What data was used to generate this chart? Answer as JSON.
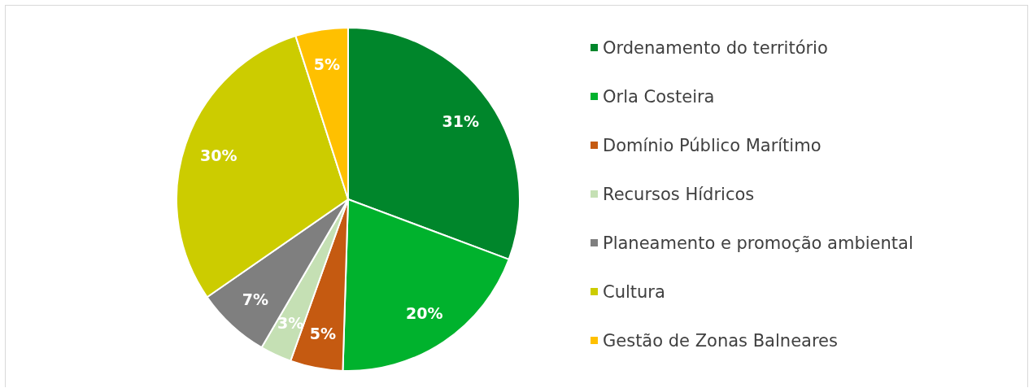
{
  "chart_data": {
    "type": "pie",
    "categories": [
      "Ordenamento do território",
      "Orla Costeira",
      "Domínio Público Marítimo",
      "Recursos Hídricos",
      "Planeamento e promoção ambiental",
      "Cultura",
      "Gestão de Zonas Balneares"
    ],
    "values": [
      31,
      20,
      5,
      3,
      7,
      30,
      5
    ],
    "colors": [
      "#00862b",
      "#00b22d",
      "#c55a11",
      "#c5e0b4",
      "#7f7f7f",
      "#cccc00",
      "#ffc000"
    ],
    "value_labels": [
      "31%",
      "20%",
      "5%",
      "3%",
      "7%",
      "30%",
      "5%"
    ],
    "legend": "right"
  }
}
